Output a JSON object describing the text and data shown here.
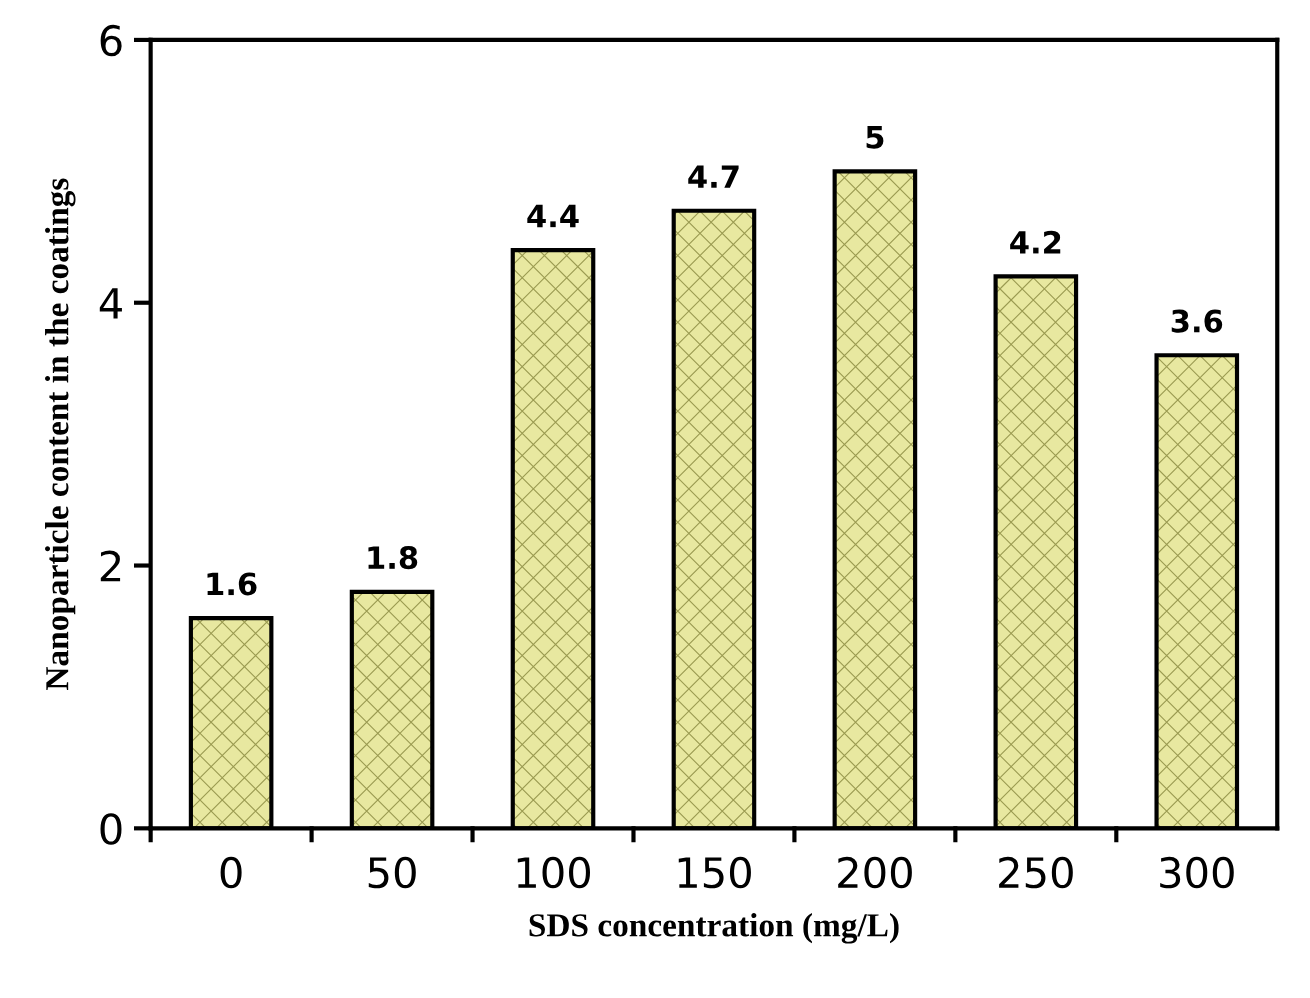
{
  "chart_data": {
    "type": "bar",
    "xlabel": "SDS concentration (mg/L)",
    "ylabel": "Nanoparticle content in the coatings",
    "categories": [
      "0",
      "50",
      "100",
      "150",
      "200",
      "250",
      "300"
    ],
    "values": [
      1.6,
      1.8,
      4.4,
      4.7,
      5,
      4.2,
      3.6
    ],
    "color": "#e8e8a0",
    "ylim": [
      0,
      6
    ],
    "yticks": [
      0,
      2,
      4,
      6
    ],
    "data_labels": true,
    "grid": false,
    "legend": false
  }
}
